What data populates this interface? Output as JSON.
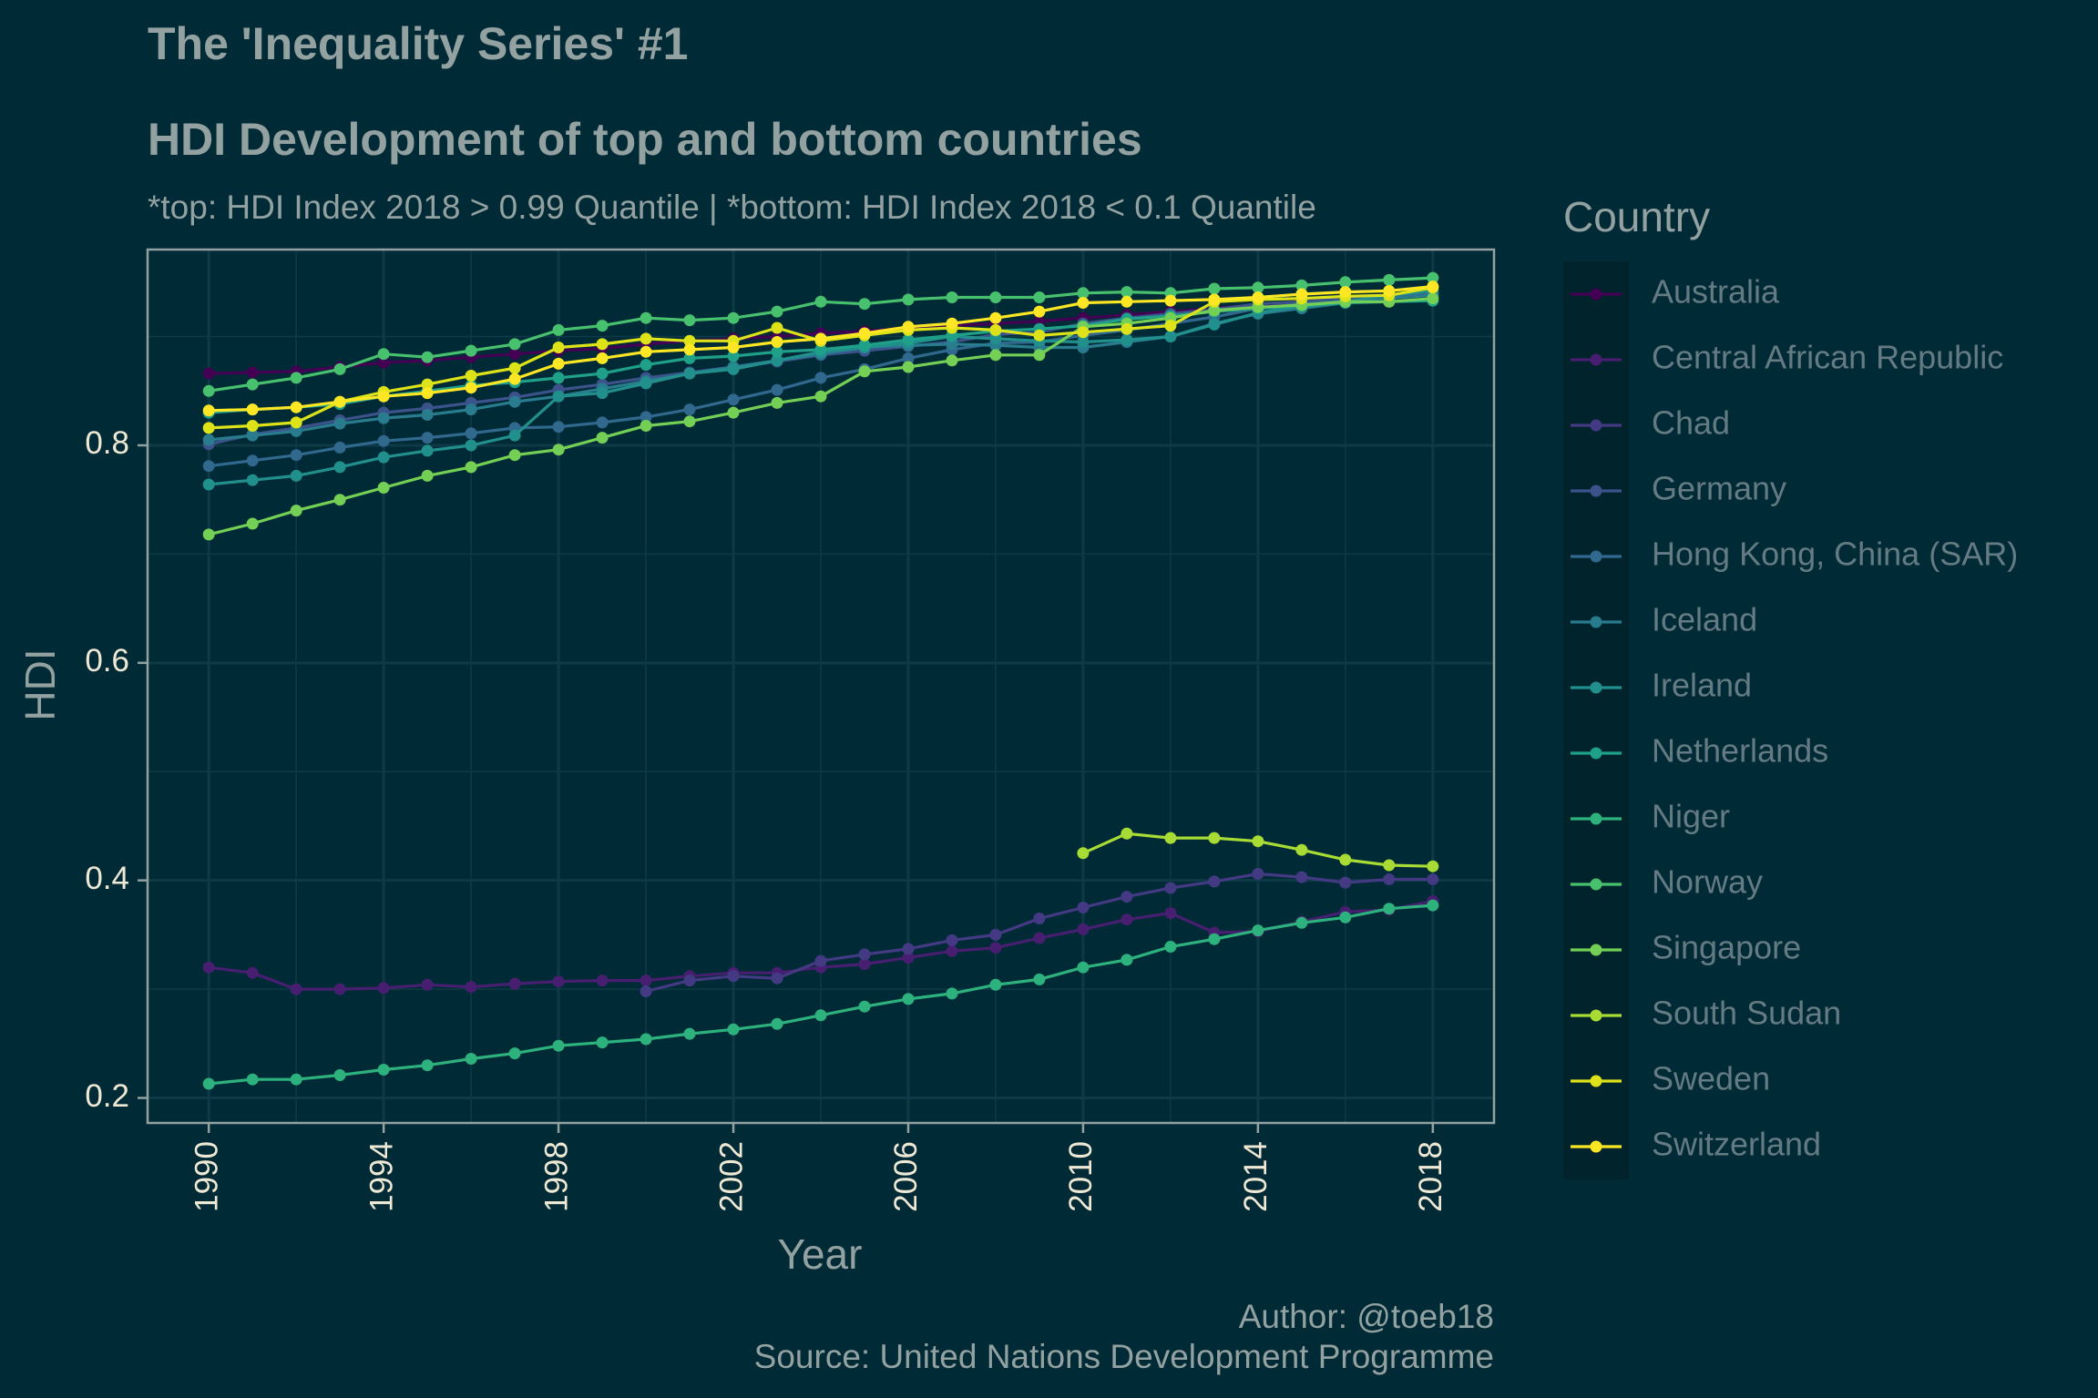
{
  "title": "The 'Inequality Series' #1",
  "subtitle_main": "HDI Development of top and bottom countries",
  "subtitle_note": "*top: HDI Index 2018 > 0.99 Quantile | *bottom: HDI Index 2018 < 0.1 Quantile",
  "caption_author": "Author: @toeb18",
  "caption_source": "Source: United Nations Development Programme",
  "colors": {
    "background": "#002b36",
    "panel_border": "#93a1a1",
    "grid": "#0e3a47"
  },
  "chart_data": {
    "type": "line",
    "xlabel": "Year",
    "ylabel": "HDI",
    "xlim": [
      1988.6,
      2019.4
    ],
    "ylim": [
      0.177,
      0.98
    ],
    "x_ticks": [
      1990,
      1994,
      1998,
      2002,
      2006,
      2010,
      2014,
      2018
    ],
    "x_tick_labels": [
      "1990",
      "1994",
      "1998",
      "2002",
      "2006",
      "2010",
      "2014",
      "2018"
    ],
    "y_ticks": [
      0.2,
      0.4,
      0.6,
      0.8
    ],
    "y_tick_labels": [
      "0.2",
      "0.4",
      "0.6",
      "0.8"
    ],
    "grid": true,
    "legend_title": "Country",
    "legend_position": "right",
    "x": [
      1990,
      1991,
      1992,
      1993,
      1994,
      1995,
      1996,
      1997,
      1998,
      1999,
      2000,
      2001,
      2002,
      2003,
      2004,
      2005,
      2006,
      2007,
      2008,
      2009,
      2010,
      2011,
      2012,
      2013,
      2014,
      2015,
      2016,
      2017,
      2018
    ],
    "series": [
      {
        "name": "Australia",
        "color": "#440154",
        "values": [
          0.866,
          0.867,
          0.868,
          0.872,
          0.876,
          0.878,
          0.881,
          0.884,
          0.887,
          0.889,
          0.893,
          0.896,
          0.898,
          0.9,
          0.903,
          0.905,
          0.908,
          0.91,
          0.912,
          0.914,
          0.917,
          0.92,
          0.923,
          0.926,
          0.929,
          0.932,
          0.935,
          0.936,
          0.938
        ]
      },
      {
        "name": "Central African Republic",
        "color": "#481f70",
        "values": [
          0.32,
          0.315,
          0.3,
          0.3,
          0.301,
          0.304,
          0.302,
          0.305,
          0.307,
          0.308,
          0.308,
          0.312,
          0.315,
          0.315,
          0.32,
          0.323,
          0.329,
          0.335,
          0.338,
          0.347,
          0.355,
          0.364,
          0.37,
          0.352,
          0.353,
          0.362,
          0.371,
          0.373,
          0.381
        ]
      },
      {
        "name": "Chad",
        "color": "#443a83",
        "values": [
          null,
          null,
          null,
          null,
          null,
          null,
          null,
          null,
          null,
          null,
          0.298,
          0.308,
          0.312,
          0.31,
          0.326,
          0.332,
          0.337,
          0.345,
          0.35,
          0.365,
          0.375,
          0.385,
          0.393,
          0.399,
          0.406,
          0.403,
          0.398,
          0.401,
          0.401
        ]
      },
      {
        "name": "Germany",
        "color": "#3b528b",
        "values": [
          0.801,
          0.81,
          0.816,
          0.823,
          0.83,
          0.834,
          0.839,
          0.844,
          0.851,
          0.856,
          0.862,
          0.867,
          0.872,
          0.877,
          0.883,
          0.887,
          0.891,
          0.895,
          0.902,
          0.904,
          0.912,
          0.917,
          0.921,
          0.925,
          0.93,
          0.932,
          0.935,
          0.937,
          0.939
        ]
      },
      {
        "name": "Hong Kong, China (SAR)",
        "color": "#31688e",
        "values": [
          0.781,
          0.786,
          0.791,
          0.798,
          0.804,
          0.807,
          0.811,
          0.816,
          0.817,
          0.821,
          0.826,
          0.833,
          0.842,
          0.851,
          0.862,
          0.87,
          0.88,
          0.888,
          0.894,
          0.895,
          0.901,
          0.906,
          0.912,
          0.918,
          0.926,
          0.93,
          0.933,
          0.936,
          0.939
        ]
      },
      {
        "name": "Iceland",
        "color": "#287c8e",
        "values": [
          0.805,
          0.809,
          0.813,
          0.82,
          0.825,
          0.828,
          0.833,
          0.84,
          0.845,
          0.852,
          0.859,
          0.866,
          0.872,
          0.878,
          0.884,
          0.89,
          0.892,
          0.893,
          0.892,
          0.89,
          0.89,
          0.895,
          0.9,
          0.912,
          0.921,
          0.926,
          0.931,
          0.935,
          0.938
        ]
      },
      {
        "name": "Ireland",
        "color": "#21908d",
        "values": [
          0.764,
          0.768,
          0.772,
          0.78,
          0.789,
          0.795,
          0.8,
          0.809,
          0.845,
          0.848,
          0.857,
          0.866,
          0.87,
          0.878,
          0.886,
          0.89,
          0.894,
          0.9,
          0.898,
          0.896,
          0.895,
          0.897,
          0.9,
          0.911,
          0.922,
          0.928,
          0.932,
          0.938,
          0.942
        ]
      },
      {
        "name": "Netherlands",
        "color": "#1fa088",
        "values": [
          0.83,
          0.833,
          0.835,
          0.838,
          0.845,
          0.85,
          0.855,
          0.858,
          0.862,
          0.866,
          0.874,
          0.88,
          0.882,
          0.886,
          0.888,
          0.892,
          0.897,
          0.901,
          0.905,
          0.907,
          0.91,
          0.916,
          0.919,
          0.923,
          0.926,
          0.928,
          0.931,
          0.932,
          0.933
        ]
      },
      {
        "name": "Niger",
        "color": "#2db27d",
        "values": [
          0.213,
          0.217,
          0.217,
          0.221,
          0.226,
          0.23,
          0.236,
          0.241,
          0.248,
          0.251,
          0.254,
          0.259,
          0.263,
          0.268,
          0.276,
          0.284,
          0.291,
          0.296,
          0.304,
          0.309,
          0.32,
          0.327,
          0.339,
          0.346,
          0.354,
          0.361,
          0.366,
          0.374,
          0.377
        ]
      },
      {
        "name": "Norway",
        "color": "#48c16e",
        "values": [
          0.85,
          0.856,
          0.862,
          0.87,
          0.884,
          0.881,
          0.887,
          0.893,
          0.906,
          0.91,
          0.917,
          0.915,
          0.917,
          0.923,
          0.932,
          0.93,
          0.934,
          0.936,
          0.936,
          0.936,
          0.94,
          0.941,
          0.94,
          0.944,
          0.945,
          0.947,
          0.95,
          0.952,
          0.954
        ]
      },
      {
        "name": "Singapore",
        "color": "#74d055",
        "values": [
          0.718,
          0.728,
          0.74,
          0.75,
          0.761,
          0.772,
          0.78,
          0.791,
          0.796,
          0.807,
          0.818,
          0.822,
          0.83,
          0.839,
          0.845,
          0.868,
          0.872,
          0.878,
          0.883,
          0.883,
          0.909,
          0.912,
          0.917,
          0.924,
          0.927,
          0.929,
          0.932,
          0.932,
          0.935
        ]
      },
      {
        "name": "South Sudan",
        "color": "#a8db34",
        "values": [
          null,
          null,
          null,
          null,
          null,
          null,
          null,
          null,
          null,
          null,
          null,
          null,
          null,
          null,
          null,
          null,
          null,
          null,
          null,
          null,
          0.425,
          0.443,
          0.439,
          0.439,
          0.436,
          0.428,
          0.419,
          0.414,
          0.413
        ]
      },
      {
        "name": "Sweden",
        "color": "#dde318",
        "values": [
          0.816,
          0.818,
          0.821,
          0.84,
          0.849,
          0.856,
          0.864,
          0.871,
          0.89,
          0.893,
          0.898,
          0.896,
          0.896,
          0.908,
          0.896,
          0.901,
          0.906,
          0.908,
          0.906,
          0.901,
          0.904,
          0.907,
          0.91,
          0.932,
          0.934,
          0.935,
          0.937,
          0.938,
          0.945
        ]
      },
      {
        "name": "Switzerland",
        "color": "#fde725",
        "values": [
          0.832,
          0.833,
          0.835,
          0.84,
          0.845,
          0.848,
          0.853,
          0.861,
          0.875,
          0.88,
          0.886,
          0.888,
          0.89,
          0.895,
          0.898,
          0.903,
          0.909,
          0.912,
          0.917,
          0.923,
          0.931,
          0.932,
          0.933,
          0.934,
          0.936,
          0.939,
          0.941,
          0.942,
          0.946
        ]
      }
    ]
  }
}
